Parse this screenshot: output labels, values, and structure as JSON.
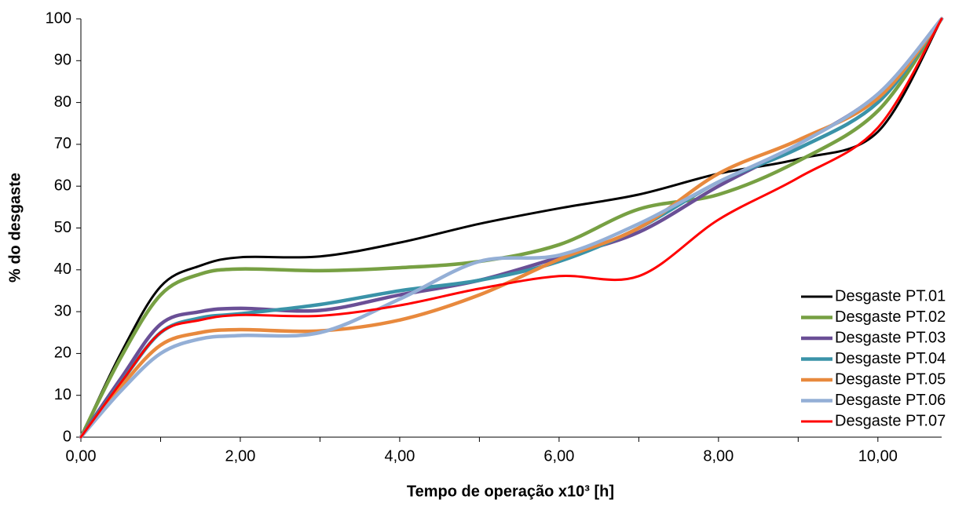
{
  "chart_data": {
    "type": "line",
    "x_label": "Tempo de operação x10³ [h]",
    "y_label": "% do desgaste",
    "x": [
      0,
      0.5,
      1,
      1.5,
      2,
      3,
      4,
      5,
      6,
      7,
      8,
      9,
      10,
      10.8
    ],
    "series": [
      {
        "name": "Desgaste PT.01",
        "color": "#000000",
        "values": [
          0,
          20,
          36,
          41,
          43,
          43.2,
          46.5,
          51,
          54.7,
          58,
          63,
          66.5,
          73,
          100
        ]
      },
      {
        "name": "Desgaste PT.02",
        "color": "#77a043",
        "values": [
          0,
          19,
          34,
          39,
          40.2,
          39.8,
          40.5,
          42,
          46,
          54.5,
          58,
          66,
          78,
          100
        ]
      },
      {
        "name": "Desgaste PT.03",
        "color": "#6a4f96",
        "values": [
          0,
          14,
          27,
          30,
          30.8,
          30.3,
          34,
          37.5,
          43,
          49,
          60,
          70,
          82,
          100
        ]
      },
      {
        "name": "Desgaste PT.04",
        "color": "#3a93a8",
        "values": [
          0,
          13,
          25,
          28.5,
          29.5,
          31.7,
          35,
          37.5,
          42,
          50,
          61,
          69,
          80,
          100
        ]
      },
      {
        "name": "Desgaste PT.05",
        "color": "#e8893d",
        "values": [
          0,
          12,
          22,
          25,
          25.7,
          25.4,
          28,
          34,
          42.5,
          50,
          63,
          71,
          81,
          100
        ]
      },
      {
        "name": "Desgaste PT.06",
        "color": "#94afd6",
        "values": [
          0,
          11,
          20,
          23.5,
          24.3,
          25,
          33,
          42,
          43.5,
          51,
          61,
          70,
          82,
          100
        ]
      },
      {
        "name": "Desgaste PT.07",
        "color": "#ff0000",
        "values": [
          0,
          13,
          25,
          28,
          29.2,
          29,
          31.5,
          35.5,
          38.5,
          38.5,
          52,
          62,
          74,
          100
        ]
      }
    ],
    "xlim": [
      0,
      10.8
    ],
    "xticks": [
      {
        "value": 0,
        "label": "0,00"
      },
      {
        "value": 2,
        "label": "2,00"
      },
      {
        "value": 4,
        "label": "4,00"
      },
      {
        "value": 6,
        "label": "6,00"
      },
      {
        "value": 8,
        "label": "8,00"
      },
      {
        "value": 10,
        "label": "10,00"
      }
    ],
    "minor_xticks": [
      1,
      3,
      5,
      7,
      9
    ],
    "ylim": [
      0,
      100
    ],
    "yticks": [
      0,
      10,
      20,
      30,
      40,
      50,
      60,
      70,
      80,
      90,
      100
    ],
    "grid": false,
    "legend": "lower-right"
  }
}
